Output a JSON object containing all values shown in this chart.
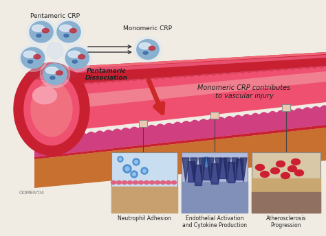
{
  "bg_color": "#f0ece4",
  "label_pentameric_crp": "Pentameric CRP",
  "label_monomeric_crp": "Monomeric CRP",
  "label_dissociation": "Pentameric\nDissociation",
  "label_vascular": "Monomeric CRP contributes\nto vascular injury",
  "label_neutrophil": "Neutrophil Adhesion",
  "label_endothelial": "Endothelial Activation\nand Cytokine Production",
  "label_atherosclerosis": "Atherosclerosis\nProgression",
  "credit": "OOMEN'04",
  "vessel_dark_red": "#c82030",
  "vessel_mid_red": "#e03050",
  "vessel_bright_red": "#f05070",
  "vessel_lumen": "#f07080",
  "vessel_light_pink": "#f8a0b0",
  "orange_tan": "#c87030",
  "orange_light": "#e09050",
  "pink_bumpy": "#d04080",
  "inset_bg1": "#c8ddf0",
  "inset_bg2": "#b0bce0",
  "inset_bg3": "#d8c8a8",
  "connector_color": "#444444",
  "box_outline": "#888888",
  "box_fill": "#e8c8b0",
  "arrow_red": "#cc2828",
  "arrow_black": "#333333",
  "crp_blue": "#8ab0d0",
  "crp_light": "#c8d8f0",
  "crp_red_stripe": "#c03040",
  "text_dark": "#222222"
}
